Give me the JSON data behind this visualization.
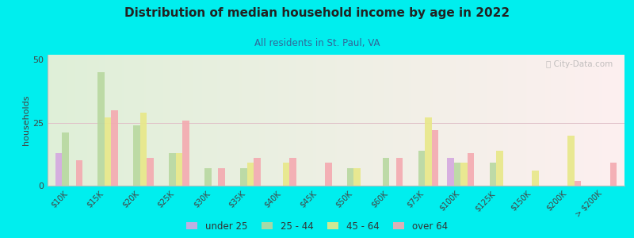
{
  "title": "Distribution of median household income by age in 2022",
  "subtitle": "All residents in St. Paul, VA",
  "ylabel": "households",
  "background_color": "#00EEEE",
  "watermark": "ⓘ City-Data.com",
  "categories": [
    "$10K",
    "$15K",
    "$20K",
    "$25K",
    "$30K",
    "$35K",
    "$40K",
    "$45K",
    "$50K",
    "$60K",
    "$75K",
    "$100K",
    "$125K",
    "$150K",
    "$200K",
    "> $200K"
  ],
  "age_groups": [
    "under 25",
    "25 - 44",
    "45 - 64",
    "over 64"
  ],
  "colors": [
    "#d4a8e0",
    "#b8d8a0",
    "#e8e888",
    "#f4aab0"
  ],
  "data": {
    "under 25": [
      13,
      0,
      0,
      0,
      0,
      0,
      0,
      0,
      0,
      0,
      0,
      11,
      0,
      0,
      0,
      0
    ],
    "25 - 44": [
      21,
      45,
      24,
      13,
      7,
      7,
      0,
      0,
      7,
      11,
      14,
      9,
      9,
      0,
      0,
      0
    ],
    "45 - 64": [
      0,
      27,
      29,
      13,
      0,
      9,
      9,
      0,
      7,
      0,
      27,
      9,
      14,
      6,
      20,
      0
    ],
    "over 64": [
      10,
      30,
      11,
      26,
      7,
      11,
      11,
      9,
      0,
      11,
      22,
      13,
      0,
      0,
      2,
      9
    ]
  },
  "ylim": [
    0,
    52
  ],
  "yticks": [
    0,
    25,
    50
  ],
  "figsize": [
    8.0,
    3.0
  ],
  "dpi": 100
}
